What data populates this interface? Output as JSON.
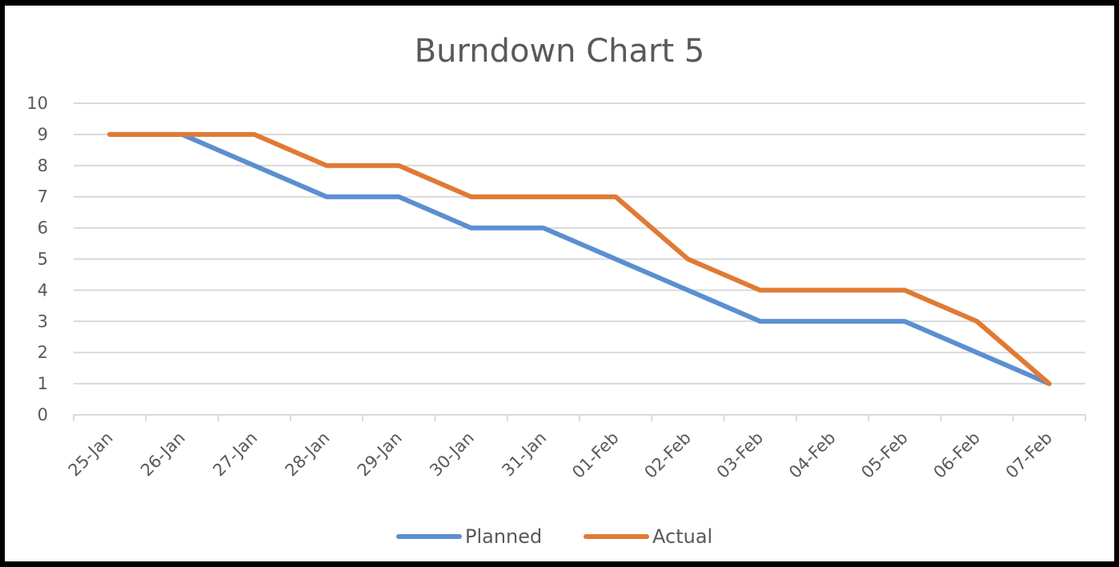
{
  "chart_data": {
    "type": "line",
    "title": "Burndown Chart 5",
    "xlabel": "",
    "ylabel": "",
    "categories": [
      "25-Jan",
      "26-Jan",
      "27-Jan",
      "28-Jan",
      "29-Jan",
      "30-Jan",
      "31-Jan",
      "01-Feb",
      "02-Feb",
      "03-Feb",
      "04-Feb",
      "05-Feb",
      "06-Feb",
      "07-Feb"
    ],
    "y_ticks": [
      "0",
      "1",
      "2",
      "3",
      "4",
      "5",
      "6",
      "7",
      "8",
      "9",
      "10"
    ],
    "ylim": [
      0,
      10
    ],
    "grid": true,
    "legend_position": "bottom",
    "series": [
      {
        "name": "Planned",
        "color": "#5B8FD0",
        "values": [
          9,
          9,
          8,
          7,
          7,
          6,
          6,
          5,
          4,
          3,
          3,
          3,
          2,
          1
        ]
      },
      {
        "name": "Actual",
        "color": "#E07A34",
        "values": [
          9,
          9,
          9,
          8,
          8,
          7,
          7,
          7,
          5,
          4,
          4,
          4,
          3,
          1
        ]
      }
    ]
  }
}
